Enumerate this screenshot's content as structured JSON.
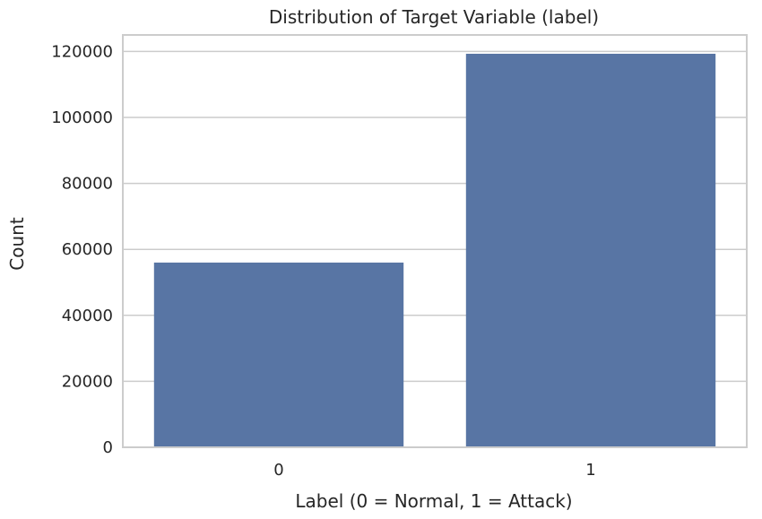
{
  "chart_data": {
    "type": "bar",
    "title": "Distribution of Target Variable (label)",
    "xlabel": "Label (0 = Normal, 1 = Attack)",
    "ylabel": "Count",
    "categories": [
      "0",
      "1"
    ],
    "values": [
      56000,
      119300
    ],
    "ylim": [
      0,
      125000
    ],
    "yticks": [
      0,
      20000,
      40000,
      60000,
      80000,
      100000,
      120000
    ],
    "grid": true,
    "bar_color": "#5875a4",
    "grid_color": "#cccccc",
    "spine_color": "#cccccc",
    "background": "#ffffff"
  }
}
